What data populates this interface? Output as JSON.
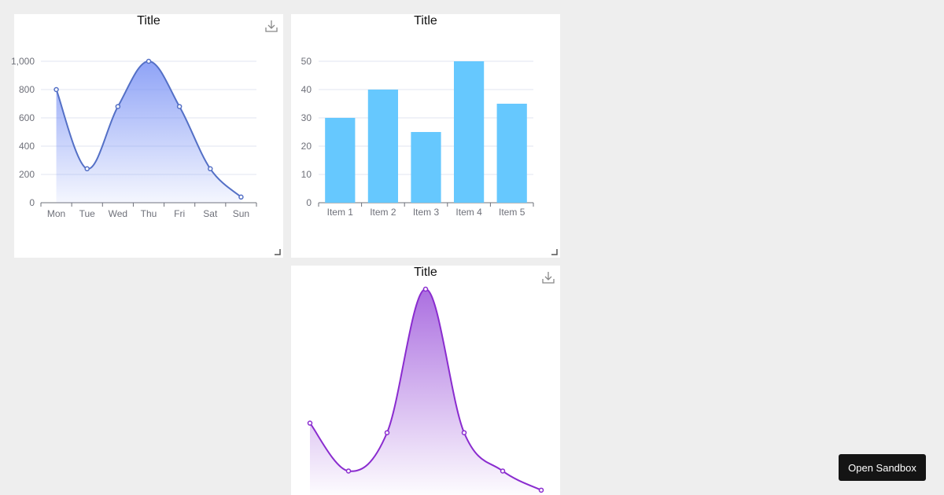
{
  "sandbox_button_label": "Open Sandbox",
  "colors": {
    "page_background": "#eeeeee",
    "line_blue": "#5470c6",
    "area_blue": "#7b93f5",
    "bar_cyan": "#66c8fe",
    "line_purple": "#8a2ccf",
    "area_purple": "#a25fdd",
    "axis_text": "#6e7079",
    "grid": "#e0e6f1"
  },
  "icons": {
    "download": "download-icon",
    "resize": "resize-handle-icon"
  },
  "chart_data": [
    {
      "type": "area",
      "title": "Title",
      "smooth": true,
      "categories": [
        "Mon",
        "Tue",
        "Wed",
        "Thu",
        "Fri",
        "Sat",
        "Sun"
      ],
      "values": [
        800,
        240,
        680,
        1000,
        680,
        240,
        40
      ],
      "y_ticks": [
        "0",
        "200",
        "400",
        "600",
        "800",
        "1,000"
      ],
      "ylim": [
        0,
        1000
      ],
      "xlabel": "",
      "ylabel": "",
      "grid": true,
      "toolbox": "download"
    },
    {
      "type": "bar",
      "title": "Title",
      "categories": [
        "Item 1",
        "Item 2",
        "Item 3",
        "Item 4",
        "Item 5"
      ],
      "values": [
        30,
        40,
        25,
        50,
        35
      ],
      "y_ticks": [
        "0",
        "10",
        "20",
        "30",
        "40",
        "50"
      ],
      "ylim": [
        0,
        50
      ],
      "xlabel": "",
      "ylabel": "",
      "grid": true
    },
    {
      "type": "area",
      "title": "Title",
      "smooth": true,
      "axes_visible": false,
      "x": [
        0,
        1,
        2,
        3,
        4,
        5,
        6
      ],
      "values": [
        30,
        5,
        25,
        100,
        25,
        5,
        -5
      ],
      "ylim": [
        -10,
        100
      ],
      "xlabel": "",
      "ylabel": "",
      "grid": false,
      "toolbox": "download"
    }
  ]
}
